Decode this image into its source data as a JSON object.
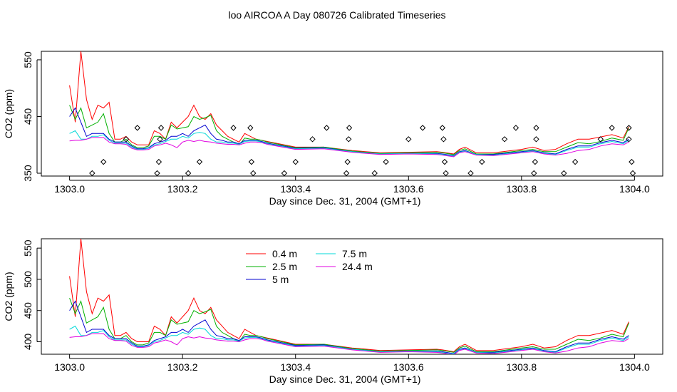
{
  "title": "loo AIRCOA A  Day 080726  Calibrated Timeseries",
  "chart_data": [
    {
      "type": "line",
      "xlabel": "Day since Dec. 31, 2004 (GMT+1)",
      "ylabel": "CO2 (ppm)",
      "xlim": [
        1303.0,
        1304.0
      ],
      "ylim": [
        345,
        565
      ],
      "xticks": [
        1303.0,
        1303.2,
        1303.4,
        1303.6,
        1303.8,
        1304.0
      ],
      "xtick_labels": [
        "1303.0",
        "1303.2",
        "1303.4",
        "1303.6",
        "1303.8",
        "1304.0"
      ],
      "yticks": [
        350,
        450,
        550
      ],
      "ytick_labels": [
        "350",
        "450",
        "550"
      ],
      "grid": false,
      "series": [
        {
          "name": "0.4 m",
          "color": "#ff0000",
          "x": [
            1303.0,
            1303.01,
            1303.02,
            1303.03,
            1303.04,
            1303.05,
            1303.06,
            1303.07,
            1303.08,
            1303.09,
            1303.1,
            1303.11,
            1303.12,
            1303.13,
            1303.14,
            1303.15,
            1303.16,
            1303.17,
            1303.18,
            1303.19,
            1303.2,
            1303.21,
            1303.22,
            1303.23,
            1303.24,
            1303.25,
            1303.26,
            1303.27,
            1303.28,
            1303.29,
            1303.3,
            1303.31,
            1303.32,
            1303.33,
            1303.34,
            1303.35,
            1303.4,
            1303.45,
            1303.5,
            1303.55,
            1303.6,
            1303.65,
            1303.66,
            1303.68,
            1303.69,
            1303.7,
            1303.72,
            1303.75,
            1303.8,
            1303.82,
            1303.84,
            1303.86,
            1303.88,
            1303.9,
            1303.92,
            1303.94,
            1303.96,
            1303.98,
            1303.99
          ],
          "y": [
            505,
            440,
            565,
            480,
            445,
            470,
            465,
            475,
            410,
            410,
            415,
            405,
            400,
            400,
            400,
            425,
            420,
            410,
            440,
            430,
            440,
            450,
            470,
            450,
            445,
            455,
            435,
            425,
            415,
            410,
            405,
            420,
            415,
            410,
            408,
            406,
            396,
            396,
            390,
            386,
            387,
            388,
            387,
            384,
            392,
            396,
            386,
            386,
            392,
            396,
            390,
            392,
            402,
            410,
            410,
            414,
            418,
            412,
            432
          ]
        },
        {
          "name": "2.5 m",
          "color": "#00b000",
          "x": [
            1303.0,
            1303.01,
            1303.02,
            1303.03,
            1303.04,
            1303.05,
            1303.06,
            1303.07,
            1303.08,
            1303.09,
            1303.1,
            1303.11,
            1303.12,
            1303.13,
            1303.14,
            1303.15,
            1303.16,
            1303.17,
            1303.18,
            1303.19,
            1303.2,
            1303.21,
            1303.22,
            1303.23,
            1303.24,
            1303.25,
            1303.26,
            1303.27,
            1303.28,
            1303.29,
            1303.3,
            1303.31,
            1303.32,
            1303.33,
            1303.34,
            1303.35,
            1303.4,
            1303.45,
            1303.5,
            1303.55,
            1303.6,
            1303.65,
            1303.66,
            1303.68,
            1303.69,
            1303.7,
            1303.72,
            1303.75,
            1303.8,
            1303.82,
            1303.84,
            1303.86,
            1303.88,
            1303.9,
            1303.92,
            1303.94,
            1303.96,
            1303.98,
            1303.99
          ],
          "y": [
            470,
            445,
            465,
            430,
            435,
            440,
            455,
            420,
            405,
            405,
            410,
            400,
            395,
            395,
            398,
            415,
            415,
            410,
            435,
            428,
            430,
            432,
            450,
            445,
            448,
            452,
            425,
            415,
            410,
            405,
            400,
            412,
            410,
            410,
            408,
            405,
            395,
            396,
            389,
            385,
            386,
            387,
            386,
            383,
            390,
            393,
            384,
            384,
            390,
            392,
            388,
            388,
            396,
            404,
            402,
            406,
            412,
            408,
            430
          ]
        },
        {
          "name": "5 m",
          "color": "#0000d0",
          "x": [
            1303.0,
            1303.01,
            1303.02,
            1303.03,
            1303.04,
            1303.05,
            1303.06,
            1303.07,
            1303.08,
            1303.09,
            1303.1,
            1303.11,
            1303.12,
            1303.13,
            1303.14,
            1303.15,
            1303.16,
            1303.17,
            1303.18,
            1303.19,
            1303.2,
            1303.21,
            1303.22,
            1303.23,
            1303.24,
            1303.25,
            1303.26,
            1303.27,
            1303.28,
            1303.29,
            1303.3,
            1303.31,
            1303.32,
            1303.33,
            1303.34,
            1303.35,
            1303.4,
            1303.45,
            1303.5,
            1303.55,
            1303.6,
            1303.65,
            1303.66,
            1303.68,
            1303.69,
            1303.7,
            1303.72,
            1303.75,
            1303.8,
            1303.82,
            1303.84,
            1303.86,
            1303.88,
            1303.9,
            1303.92,
            1303.94,
            1303.96,
            1303.98,
            1303.99
          ],
          "y": [
            450,
            465,
            440,
            415,
            420,
            420,
            420,
            410,
            405,
            405,
            405,
            398,
            393,
            393,
            395,
            402,
            405,
            408,
            415,
            415,
            420,
            415,
            425,
            430,
            435,
            420,
            410,
            408,
            405,
            405,
            402,
            408,
            408,
            408,
            406,
            403,
            394,
            395,
            388,
            384,
            385,
            385,
            384,
            381,
            388,
            390,
            383,
            383,
            388,
            390,
            386,
            384,
            392,
            398,
            398,
            404,
            408,
            404,
            410
          ]
        },
        {
          "name": "7.5 m",
          "color": "#00d8d8",
          "x": [
            1303.0,
            1303.01,
            1303.02,
            1303.03,
            1303.04,
            1303.05,
            1303.06,
            1303.07,
            1303.08,
            1303.09,
            1303.1,
            1303.11,
            1303.12,
            1303.13,
            1303.14,
            1303.15,
            1303.16,
            1303.17,
            1303.18,
            1303.19,
            1303.2,
            1303.21,
            1303.22,
            1303.23,
            1303.24,
            1303.25,
            1303.26,
            1303.27,
            1303.28,
            1303.29,
            1303.3,
            1303.31,
            1303.32,
            1303.33,
            1303.34,
            1303.35,
            1303.4,
            1303.45,
            1303.5,
            1303.55,
            1303.6,
            1303.65,
            1303.66,
            1303.68,
            1303.69,
            1303.7,
            1303.72,
            1303.75,
            1303.8,
            1303.82,
            1303.84,
            1303.86,
            1303.88,
            1303.9,
            1303.92,
            1303.94,
            1303.96,
            1303.98,
            1303.99
          ],
          "y": [
            420,
            425,
            410,
            410,
            415,
            415,
            418,
            408,
            403,
            403,
            403,
            396,
            392,
            392,
            394,
            400,
            402,
            406,
            410,
            410,
            415,
            412,
            420,
            422,
            420,
            410,
            405,
            405,
            403,
            403,
            401,
            406,
            407,
            407,
            405,
            402,
            393,
            394,
            388,
            384,
            385,
            384,
            383,
            380,
            387,
            389,
            383,
            382,
            387,
            389,
            385,
            383,
            390,
            396,
            396,
            402,
            406,
            402,
            408
          ]
        },
        {
          "name": "24.4 m",
          "color": "#e000e0",
          "x": [
            1303.0,
            1303.01,
            1303.02,
            1303.03,
            1303.04,
            1303.05,
            1303.06,
            1303.07,
            1303.08,
            1303.09,
            1303.1,
            1303.11,
            1303.12,
            1303.13,
            1303.14,
            1303.15,
            1303.16,
            1303.17,
            1303.18,
            1303.19,
            1303.2,
            1303.21,
            1303.22,
            1303.23,
            1303.24,
            1303.25,
            1303.26,
            1303.27,
            1303.28,
            1303.29,
            1303.3,
            1303.31,
            1303.32,
            1303.33,
            1303.34,
            1303.35,
            1303.4,
            1303.45,
            1303.5,
            1303.55,
            1303.6,
            1303.65,
            1303.66,
            1303.68,
            1303.69,
            1303.7,
            1303.72,
            1303.75,
            1303.8,
            1303.82,
            1303.84,
            1303.86,
            1303.88,
            1303.9,
            1303.92,
            1303.94,
            1303.96,
            1303.98,
            1303.99
          ],
          "y": [
            407,
            408,
            408,
            410,
            413,
            413,
            413,
            405,
            402,
            402,
            401,
            394,
            391,
            391,
            392,
            398,
            400,
            403,
            400,
            395,
            405,
            408,
            406,
            408,
            406,
            405,
            403,
            402,
            401,
            401,
            400,
            403,
            405,
            405,
            404,
            401,
            392,
            393,
            387,
            383,
            384,
            383,
            382,
            379,
            386,
            388,
            382,
            381,
            386,
            388,
            384,
            382,
            385,
            390,
            392,
            398,
            402,
            400,
            405
          ]
        }
      ],
      "markers": {
        "shape": "diamond",
        "points": [
          [
            1303.04,
            350
          ],
          [
            1303.06,
            370
          ],
          [
            1303.1,
            410
          ],
          [
            1303.12,
            430
          ],
          [
            1303.155,
            350
          ],
          [
            1303.158,
            370
          ],
          [
            1303.16,
            410
          ],
          [
            1303.162,
            430
          ],
          [
            1303.21,
            350
          ],
          [
            1303.23,
            370
          ],
          [
            1303.29,
            430
          ],
          [
            1303.32,
            430
          ],
          [
            1303.322,
            370
          ],
          [
            1303.325,
            350
          ],
          [
            1303.38,
            350
          ],
          [
            1303.4,
            370
          ],
          [
            1303.43,
            410
          ],
          [
            1303.455,
            430
          ],
          [
            1303.49,
            350
          ],
          [
            1303.492,
            370
          ],
          [
            1303.494,
            410
          ],
          [
            1303.495,
            430
          ],
          [
            1303.54,
            350
          ],
          [
            1303.56,
            370
          ],
          [
            1303.6,
            410
          ],
          [
            1303.625,
            430
          ],
          [
            1303.66,
            430
          ],
          [
            1303.662,
            410
          ],
          [
            1303.664,
            370
          ],
          [
            1303.666,
            350
          ],
          [
            1303.71,
            350
          ],
          [
            1303.73,
            370
          ],
          [
            1303.77,
            410
          ],
          [
            1303.79,
            430
          ],
          [
            1303.826,
            430
          ],
          [
            1303.826,
            410
          ],
          [
            1303.824,
            370
          ],
          [
            1303.822,
            350
          ],
          [
            1303.875,
            350
          ],
          [
            1303.895,
            370
          ],
          [
            1303.94,
            410
          ],
          [
            1303.96,
            430
          ],
          [
            1303.99,
            410
          ],
          [
            1303.99,
            430
          ],
          [
            1303.995,
            370
          ],
          [
            1303.997,
            350
          ]
        ]
      }
    },
    {
      "type": "line",
      "xlabel": "Day since Dec. 31, 2004 (GMT+1)",
      "ylabel": "CO2 (ppm)",
      "xlim": [
        1303.0,
        1304.0
      ],
      "ylim": [
        380,
        565
      ],
      "xticks": [
        1303.0,
        1303.2,
        1303.4,
        1303.6,
        1303.8,
        1304.0
      ],
      "xtick_labels": [
        "1303.0",
        "1303.2",
        "1303.4",
        "1303.6",
        "1303.8",
        "1304.0"
      ],
      "yticks": [
        400,
        450,
        500,
        550
      ],
      "ytick_labels": [
        "400",
        "450",
        "500",
        "550"
      ],
      "grid": false,
      "legend": {
        "placement": "top-center",
        "entries": [
          {
            "label": "0.4 m",
            "color": "#ff0000"
          },
          {
            "label": "2.5 m",
            "color": "#00b000"
          },
          {
            "label": "5 m",
            "color": "#0000d0"
          },
          {
            "label": "7.5 m",
            "color": "#00d8d8"
          },
          {
            "label": "24.4 m",
            "color": "#e000e0"
          }
        ]
      },
      "series_ref": "same as first panel"
    }
  ]
}
